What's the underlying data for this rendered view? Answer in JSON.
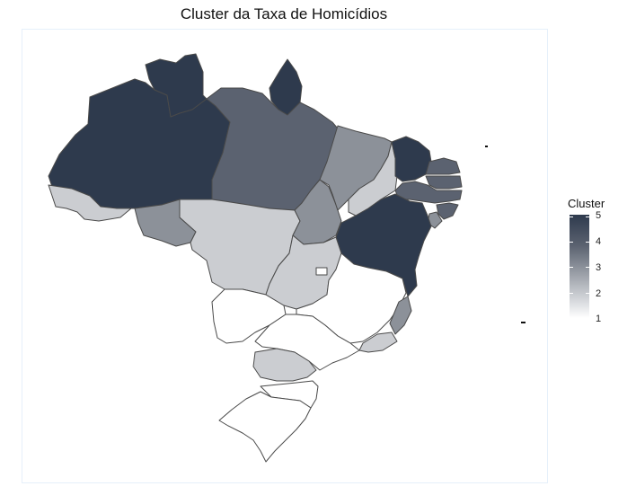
{
  "title": "Cluster da Taxa de Homicídios",
  "legend": {
    "title": "Cluster",
    "ticks": [
      "5",
      "4",
      "3",
      "2",
      "1"
    ]
  },
  "colors": {
    "c1": "#ffffff",
    "c2": "#cbcdd1",
    "c3": "#8c9199",
    "c4": "#5b6270",
    "c5": "#2e3a4d"
  },
  "states": {
    "AM": 5,
    "RR": 5,
    "AP": 5,
    "CE": 5,
    "BA": 5,
    "PA": 4,
    "RN": 4,
    "PB": 4,
    "PE": 4,
    "AL": 4,
    "MA": 3,
    "TO": 3,
    "RO": 3,
    "SE": 3,
    "ES": 3,
    "AC": 2,
    "MT": 2,
    "GO": 2,
    "PI": 2,
    "PR": 2,
    "RJ": 2,
    "MS": 1,
    "MG": 1,
    "SP": 1,
    "SC": 1,
    "RS": 1,
    "DF": 1
  }
}
